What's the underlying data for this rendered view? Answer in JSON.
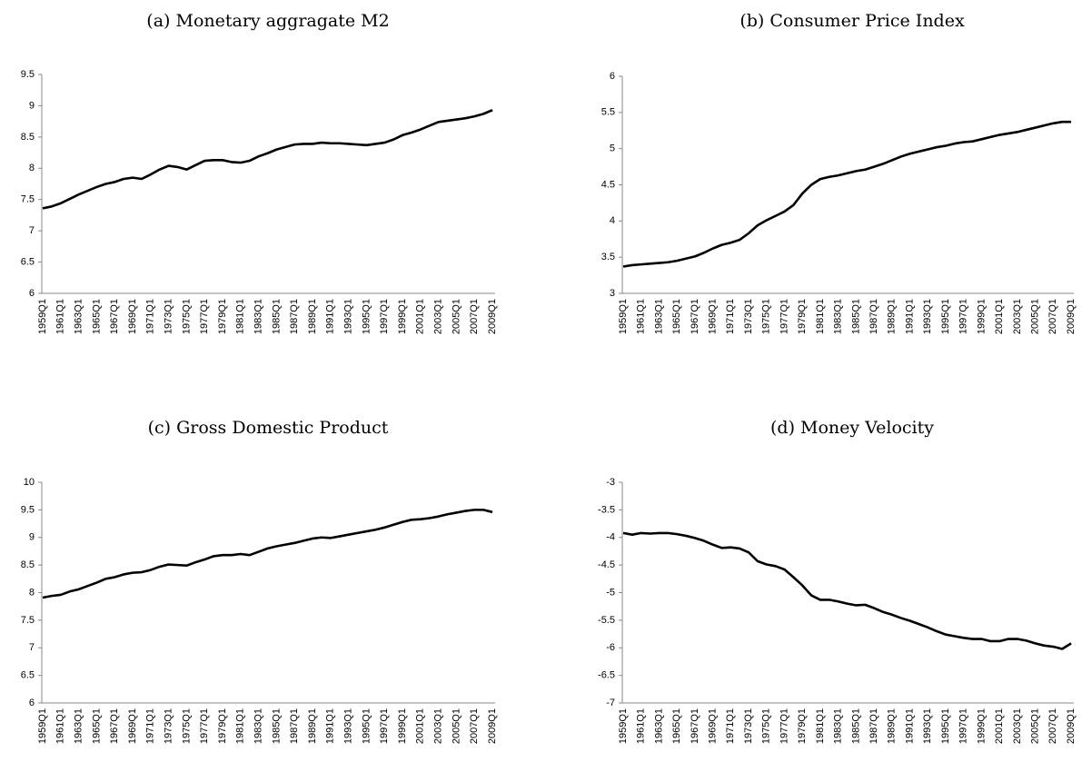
{
  "chart_data": [
    {
      "type": "line",
      "title": "(a) Monetary aggragate M2",
      "color": "#000000",
      "categories": [
        "1959Q1",
        null,
        "1961Q1",
        null,
        "1963Q1",
        null,
        "1965Q1",
        null,
        "1967Q1",
        null,
        "1969Q1",
        null,
        "1971Q1",
        null,
        "1973Q1",
        null,
        "1975Q1",
        null,
        "1977Q1",
        null,
        "1979Q1",
        null,
        "1981Q1",
        null,
        "1983Q1",
        null,
        "1985Q1",
        null,
        "1987Q1",
        null,
        "1989Q1",
        null,
        "1991Q1",
        null,
        "1993Q1",
        null,
        "1995Q1",
        null,
        "1997Q1",
        null,
        "1999Q1",
        null,
        "2001Q1",
        null,
        "2003Q1",
        null,
        "2005Q1",
        null,
        "2007Q1",
        null,
        "2009Q1"
      ],
      "values": [
        7.36,
        7.39,
        7.44,
        7.51,
        7.58,
        7.64,
        7.7,
        7.75,
        7.78,
        7.83,
        7.85,
        7.83,
        7.9,
        7.98,
        8.04,
        8.02,
        7.98,
        8.05,
        8.12,
        8.13,
        8.13,
        8.1,
        8.09,
        8.12,
        8.19,
        8.24,
        8.3,
        8.34,
        8.38,
        8.39,
        8.39,
        8.41,
        8.4,
        8.4,
        8.39,
        8.38,
        8.37,
        8.39,
        8.41,
        8.46,
        8.53,
        8.57,
        8.62,
        8.68,
        8.74,
        8.76,
        8.78,
        8.8,
        8.83,
        8.87,
        8.93
      ],
      "ylim": [
        6,
        9.5
      ],
      "yticks": [
        6,
        6.5,
        7,
        7.5,
        8,
        8.5,
        9,
        9.5
      ]
    },
    {
      "type": "line",
      "title": "(b) Consumer Price Index",
      "color": "#000000",
      "categories": [
        "1959Q1",
        null,
        "1961Q1",
        null,
        "1963Q1",
        null,
        "1965Q1",
        null,
        "1967Q1",
        null,
        "1969Q1",
        null,
        "1971Q1",
        null,
        "1973Q1",
        null,
        "1975Q1",
        null,
        "1977Q1",
        null,
        "1979Q1",
        null,
        "1981Q1",
        null,
        "1983Q1",
        null,
        "1985Q1",
        null,
        "1987Q1",
        null,
        "1989Q1",
        null,
        "1991Q1",
        null,
        "1993Q1",
        null,
        "1995Q1",
        null,
        "1997Q1",
        null,
        "1999Q1",
        null,
        "2001Q1",
        null,
        "2003Q1",
        null,
        "2005Q1",
        null,
        "2007Q1",
        null,
        "2009Q1"
      ],
      "values": [
        3.37,
        3.39,
        3.4,
        3.41,
        3.42,
        3.43,
        3.45,
        3.48,
        3.51,
        3.56,
        3.62,
        3.67,
        3.7,
        3.74,
        3.83,
        3.94,
        4.01,
        4.07,
        4.13,
        4.22,
        4.38,
        4.5,
        4.58,
        4.61,
        4.63,
        4.66,
        4.69,
        4.71,
        4.75,
        4.79,
        4.84,
        4.89,
        4.93,
        4.96,
        4.99,
        5.02,
        5.04,
        5.07,
        5.09,
        5.1,
        5.13,
        5.16,
        5.19,
        5.21,
        5.23,
        5.26,
        5.29,
        5.32,
        5.35,
        5.37,
        5.37
      ],
      "ylim": [
        3,
        6
      ],
      "yticks": [
        3,
        3.5,
        4,
        4.5,
        5,
        5.5,
        6
      ]
    },
    {
      "type": "line",
      "title": "(c) Gross Domestic Product",
      "color": "#000000",
      "categories": [
        "1959Q1",
        null,
        "1961Q1",
        null,
        "1963Q1",
        null,
        "1965Q1",
        null,
        "1967Q1",
        null,
        "1969Q1",
        null,
        "1971Q1",
        null,
        "1973Q1",
        null,
        "1975Q1",
        null,
        "1977Q1",
        null,
        "1979Q1",
        null,
        "1981Q1",
        null,
        "1983Q1",
        null,
        "1985Q1",
        null,
        "1987Q1",
        null,
        "1989Q1",
        null,
        "1991Q1",
        null,
        "1993Q1",
        null,
        "1995Q1",
        null,
        "1997Q1",
        null,
        "1999Q1",
        null,
        "2001Q1",
        null,
        "2003Q1",
        null,
        "2005Q1",
        null,
        "2007Q1",
        null,
        "2009Q1"
      ],
      "values": [
        7.91,
        7.94,
        7.96,
        8.02,
        8.06,
        8.12,
        8.18,
        8.25,
        8.28,
        8.33,
        8.36,
        8.37,
        8.41,
        8.47,
        8.51,
        8.5,
        8.49,
        8.55,
        8.6,
        8.66,
        8.68,
        8.68,
        8.7,
        8.68,
        8.74,
        8.8,
        8.84,
        8.87,
        8.9,
        8.94,
        8.98,
        9.0,
        8.99,
        9.02,
        9.05,
        9.08,
        9.11,
        9.14,
        9.18,
        9.23,
        9.28,
        9.32,
        9.33,
        9.35,
        9.38,
        9.42,
        9.45,
        9.48,
        9.5,
        9.5,
        9.46
      ],
      "ylim": [
        6,
        10
      ],
      "yticks": [
        6,
        6.5,
        7,
        7.5,
        8,
        8.5,
        9,
        9.5,
        10
      ]
    },
    {
      "type": "line",
      "title": "(d) Money Velocity",
      "color": "#000000",
      "categories": [
        "1959Q1",
        null,
        "1961Q1",
        null,
        "1963Q1",
        null,
        "1965Q1",
        null,
        "1967Q1",
        null,
        "1969Q1",
        null,
        "1971Q1",
        null,
        "1973Q1",
        null,
        "1975Q1",
        null,
        "1977Q1",
        null,
        "1979Q1",
        null,
        "1981Q1",
        null,
        "1983Q1",
        null,
        "1985Q1",
        null,
        "1987Q1",
        null,
        "1989Q1",
        null,
        "1991Q1",
        null,
        "1993Q1",
        null,
        "1995Q1",
        null,
        "1997Q1",
        null,
        "1999Q1",
        null,
        "2001Q1",
        null,
        "2003Q1",
        null,
        "2005Q1",
        null,
        "2007Q1",
        null,
        "2009Q1"
      ],
      "values": [
        -3.92,
        -3.95,
        -3.92,
        -3.93,
        -3.92,
        -3.92,
        -3.94,
        -3.97,
        -4.01,
        -4.06,
        -4.13,
        -4.19,
        -4.18,
        -4.2,
        -4.27,
        -4.43,
        -4.49,
        -4.52,
        -4.58,
        -4.72,
        -4.87,
        -5.05,
        -5.13,
        -5.13,
        -5.16,
        -5.2,
        -5.23,
        -5.22,
        -5.28,
        -5.35,
        -5.4,
        -5.46,
        -5.51,
        -5.57,
        -5.63,
        -5.7,
        -5.76,
        -5.79,
        -5.82,
        -5.84,
        -5.84,
        -5.88,
        -5.88,
        -5.84,
        -5.84,
        -5.87,
        -5.92,
        -5.96,
        -5.98,
        -6.02,
        -5.92
      ],
      "ylim": [
        -7,
        -3
      ],
      "yticks": [
        -7,
        -6.5,
        -6,
        -5.5,
        -5,
        -4.5,
        -4,
        -3.5,
        -3
      ]
    }
  ]
}
